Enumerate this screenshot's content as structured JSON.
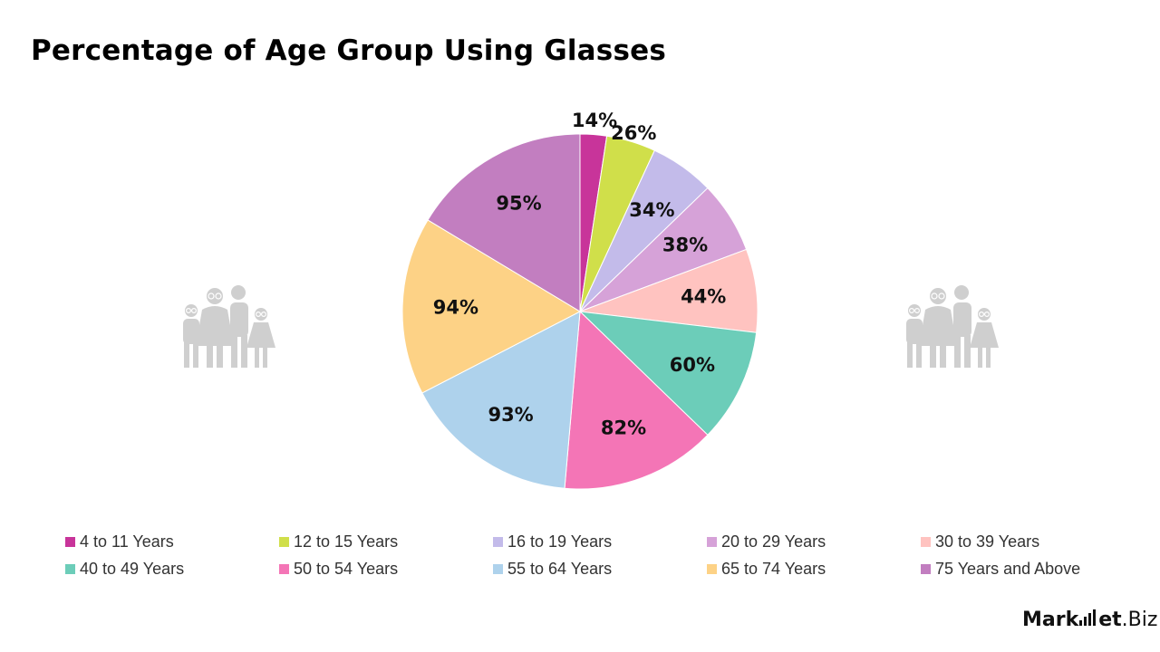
{
  "title": "Percentage of Age Group Using Glasses",
  "chart_data": {
    "type": "pie",
    "title": "Percentage of Age Group Using Glasses",
    "legend_position": "bottom",
    "categories": [
      "4 to 11 Years",
      "12 to 15 Years",
      "16 to 19 Years",
      "20 to 29 Years",
      "30 to 39 Years",
      "40 to 49 Years",
      "50 to 54 Years",
      "55 to 64 Years",
      "65 to 74 Years",
      "75 Years and Above"
    ],
    "values": [
      14,
      26,
      34,
      38,
      44,
      60,
      82,
      93,
      94,
      95
    ],
    "labels": [
      "14%",
      "26%",
      "34%",
      "38%",
      "44%",
      "60%",
      "82%",
      "93%",
      "94%",
      "95%"
    ],
    "colors": [
      "#C8349A",
      "#D0DF4A",
      "#C3BBEA",
      "#D6A2D8",
      "#FFC3C0",
      "#6CCDB9",
      "#F475B6",
      "#AED2EC",
      "#FDD286",
      "#C27EC0"
    ]
  },
  "icons": {
    "left_illustration": "family-icon",
    "right_illustration": "family-icon",
    "brand_logo": "market-biz-logo"
  },
  "brand": {
    "part1": "Mark",
    "part2": "et",
    "part3": ".Biz"
  }
}
